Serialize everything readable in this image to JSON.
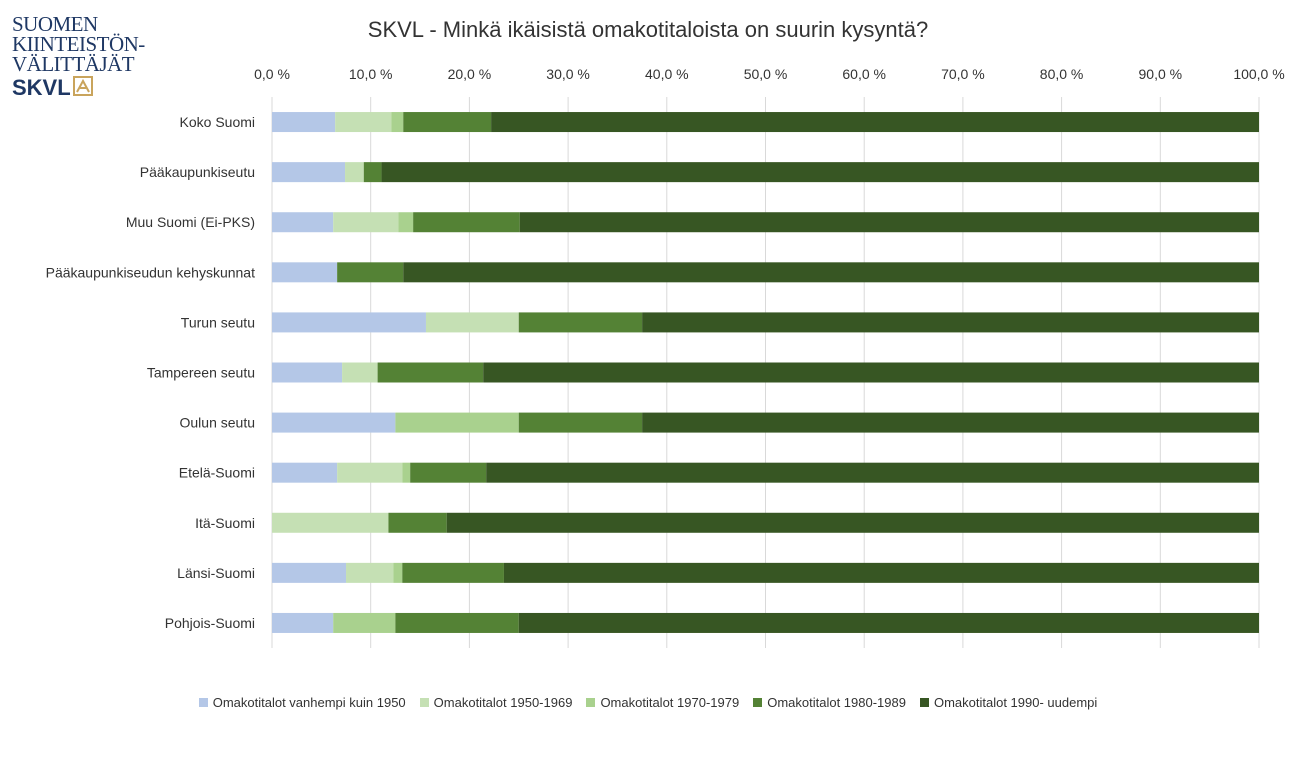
{
  "logo": {
    "line1": "SUOMEN",
    "line2": "KIINTEISTÖN-",
    "line3": "VÄLITTÄJÄT",
    "brand": "SKVL"
  },
  "chart_data": {
    "type": "bar",
    "orientation": "horizontal",
    "stacked": true,
    "title": "SKVL - Minkä ikäisistä omakotitaloista on suurin kysyntä?",
    "xlim": [
      0,
      100
    ],
    "x_ticks": [
      "0,0 %",
      "10,0 %",
      "20,0 %",
      "30,0 %",
      "40,0 %",
      "50,0 %",
      "60,0 %",
      "70,0 %",
      "80,0 %",
      "90,0 %",
      "100,0 %"
    ],
    "x_axis_position": "top",
    "grid": true,
    "legend_position": "bottom",
    "categories": [
      "Koko Suomi",
      "Pääkaupunkiseutu",
      "Muu Suomi (Ei-PKS)",
      "Pääkaupunkiseudun kehyskunnat",
      "Turun seutu",
      "Tampereen seutu",
      "Oulun seutu",
      "Etelä-Suomi",
      "Itä-Suomi",
      "Länsi-Suomi",
      "Pohjois-Suomi"
    ],
    "series": [
      {
        "name": "Omakotitalot vanhempi kuin 1950",
        "color": "#b4c7e7",
        "values": [
          6.4,
          7.4,
          6.2,
          6.6,
          15.6,
          7.1,
          12.5,
          6.6,
          0.0,
          7.5,
          6.2
        ]
      },
      {
        "name": "Omakotitalot 1950-1969",
        "color": "#c5e0b4",
        "values": [
          5.7,
          1.9,
          6.6,
          0.0,
          9.4,
          3.6,
          0.0,
          6.6,
          11.8,
          4.8,
          0.0
        ]
      },
      {
        "name": "Omakotitalot 1970-1979",
        "color": "#a9d18e",
        "values": [
          1.2,
          0.0,
          1.5,
          0.0,
          0.0,
          0.0,
          12.5,
          0.8,
          0.0,
          0.9,
          6.3
        ]
      },
      {
        "name": "Omakotitalot 1980-1989",
        "color": "#548235",
        "values": [
          8.9,
          1.8,
          10.8,
          6.7,
          12.5,
          10.7,
          12.5,
          7.7,
          5.9,
          10.3,
          12.5
        ]
      },
      {
        "name": "Omakotitalot 1990- uudempi",
        "color": "#375623",
        "values": [
          77.8,
          88.9,
          74.9,
          86.7,
          62.5,
          78.6,
          62.5,
          78.3,
          82.3,
          76.5,
          75.0
        ]
      }
    ]
  }
}
